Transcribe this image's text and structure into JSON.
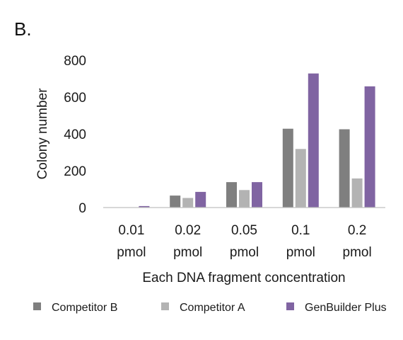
{
  "panel_label": "B.",
  "colors": {
    "Competitor B": "#7f7f7f",
    "Competitor A": "#b3b3b3",
    "GenBuilder Plus": "#8064a2",
    "axis": "#c0c0c0"
  },
  "chart_data": {
    "type": "bar",
    "title": "",
    "xlabel": "Each DNA fragment concentration",
    "ylabel": "Colony number",
    "categories": [
      [
        "0.01",
        "pmol"
      ],
      [
        "0.02",
        "pmol"
      ],
      [
        "0.05",
        "pmol"
      ],
      [
        "0.1",
        "pmol"
      ],
      [
        "0.2",
        "pmol"
      ]
    ],
    "ylim": [
      0,
      800
    ],
    "yticks": [
      "0",
      "200",
      "400",
      "600",
      "800"
    ],
    "grid": false,
    "legend_position": "bottom",
    "series": [
      {
        "name": "Competitor B",
        "values": [
          0,
          65,
          138,
          428,
          425
        ]
      },
      {
        "name": "Competitor A",
        "values": [
          0,
          52,
          95,
          318,
          158
        ]
      },
      {
        "name": "GenBuilder Plus",
        "values": [
          8,
          85,
          138,
          728,
          658
        ]
      }
    ]
  }
}
